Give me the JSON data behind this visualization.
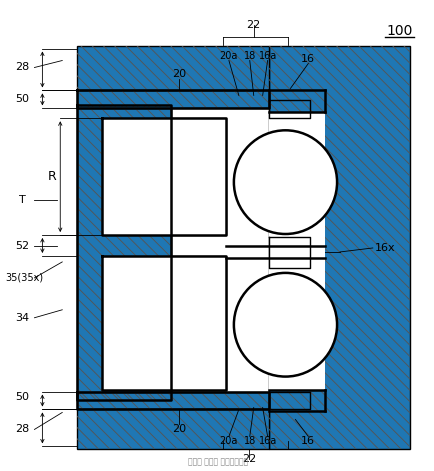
{
  "fig_width": 4.35,
  "fig_height": 4.71,
  "dpi": 100,
  "bg_color": "#ffffff",
  "lc": "#000000",
  "hatch_lc": "#555555",
  "ref_number": "100",
  "labels": {
    "28_top": "28",
    "50_top": "50",
    "T": "T",
    "R": "R",
    "52": "52",
    "35_35x": "35(35x)",
    "34": "34",
    "50_bot": "50",
    "28_bot": "28",
    "20_top": "20",
    "20_bot": "20",
    "22_top": "22",
    "22_bot": "22",
    "20a_top": "20a",
    "18_top": "18",
    "16a_top": "16a",
    "16_top": "16",
    "16x": "16x",
    "20a_bot": "20a",
    "18_bot": "18",
    "16a_bot": "16a",
    "16_bot": "16"
  }
}
